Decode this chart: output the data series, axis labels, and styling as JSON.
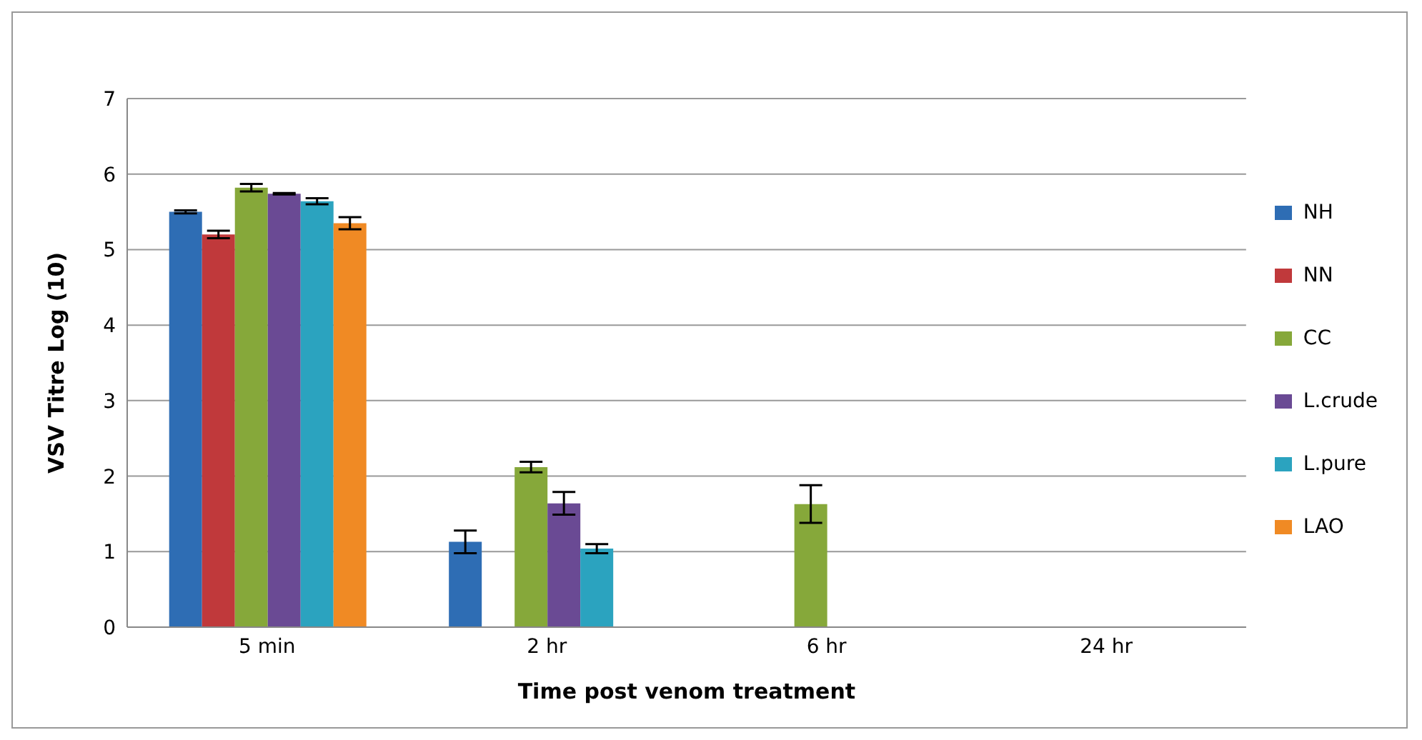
{
  "chart_data": {
    "type": "bar",
    "xlabel": "Time post  venom treatment",
    "ylabel": "VSV Titre Log  (10)",
    "categories": [
      "5 min",
      "2 hr",
      "6 hr",
      "24 hr"
    ],
    "series": [
      {
        "name": "NH",
        "color": "#2e6db4",
        "values": [
          5.5,
          1.13,
          null,
          null
        ],
        "errors": [
          0.02,
          0.15,
          null,
          null
        ]
      },
      {
        "name": "NN",
        "color": "#c0393b",
        "values": [
          5.2,
          null,
          null,
          null
        ],
        "errors": [
          0.05,
          null,
          null,
          null
        ]
      },
      {
        "name": "CC",
        "color": "#86a83a",
        "values": [
          5.82,
          2.12,
          1.63,
          null
        ],
        "errors": [
          0.05,
          0.07,
          0.25,
          null
        ]
      },
      {
        "name": "L.crude",
        "color": "#6a4a94",
        "values": [
          5.74,
          1.64,
          null,
          null
        ],
        "errors": [
          0.01,
          0.15,
          null,
          null
        ]
      },
      {
        "name": "L.pure",
        "color": "#2ba3bf",
        "values": [
          5.64,
          1.04,
          null,
          null
        ],
        "errors": [
          0.04,
          0.06,
          null,
          null
        ]
      },
      {
        "name": "LAO",
        "color": "#f08a24",
        "values": [
          5.35,
          null,
          null,
          null
        ],
        "errors": [
          0.08,
          null,
          null,
          null
        ]
      }
    ],
    "ylim": [
      0,
      7
    ],
    "yticks": [
      0,
      1,
      2,
      3,
      4,
      5,
      6,
      7
    ],
    "grid": "y",
    "legend": "right"
  }
}
